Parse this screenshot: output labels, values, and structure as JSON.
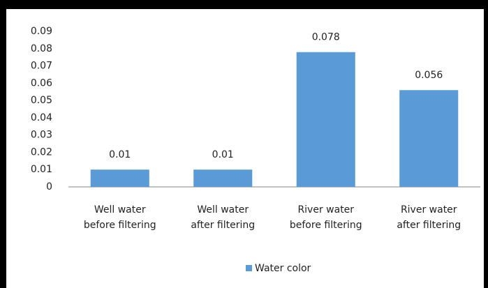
{
  "chart_data": {
    "type": "bar",
    "categories": [
      "Well water\nbefore filtering",
      "Well water\nafter filtering",
      "River water\nbefore filtering",
      "River water\nafter filtering"
    ],
    "series": [
      {
        "name": "Water color",
        "color": "#5b9bd5",
        "values": [
          0.01,
          0.01,
          0.078,
          0.056
        ]
      }
    ],
    "ylim": [
      0,
      0.09
    ],
    "yticks": [
      0,
      0.01,
      0.02,
      0.03,
      0.04,
      0.05,
      0.06,
      0.07,
      0.08,
      0.09
    ],
    "grid": false,
    "legend": "bottom",
    "data_labels": true
  }
}
